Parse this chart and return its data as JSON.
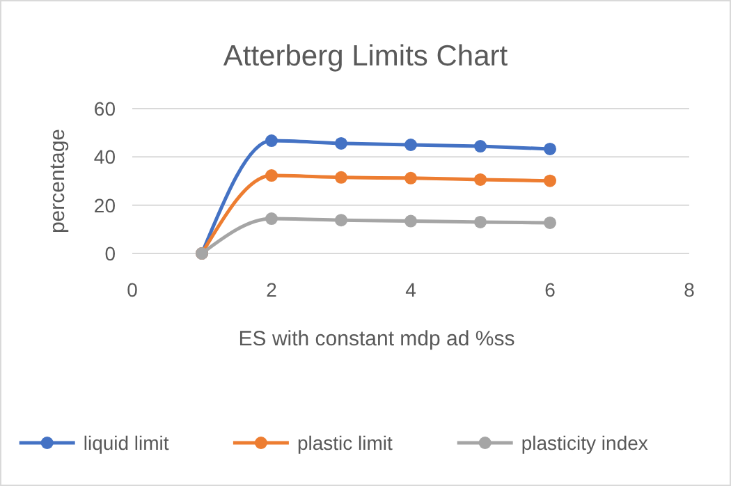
{
  "chart_data": {
    "type": "line",
    "title": "Atterberg Limits Chart",
    "xlabel": "ES with constant mdp ad %ss",
    "ylabel": "percentage",
    "x": [
      1,
      2,
      3,
      4,
      5,
      6
    ],
    "series": [
      {
        "name": "liquid limit",
        "color": "#4472c4",
        "values": [
          0,
          46.7,
          45.6,
          45,
          44.4,
          43.3
        ]
      },
      {
        "name": "plastic limit",
        "color": "#ed7d31",
        "values": [
          0,
          32.3,
          31.5,
          31.2,
          30.6,
          30.1
        ]
      },
      {
        "name": "plasticity index",
        "color": "#a5a5a5",
        "values": [
          0,
          14.4,
          13.8,
          13.4,
          13,
          12.7
        ]
      }
    ],
    "xlim": [
      0,
      8
    ],
    "xticks": [
      0,
      2,
      4,
      6,
      8
    ],
    "ylim": [
      0,
      60
    ],
    "yticks": [
      0,
      20,
      40,
      60
    ],
    "grid": "y",
    "legend": "bottom",
    "marker": "circle",
    "line_style": "solid"
  }
}
